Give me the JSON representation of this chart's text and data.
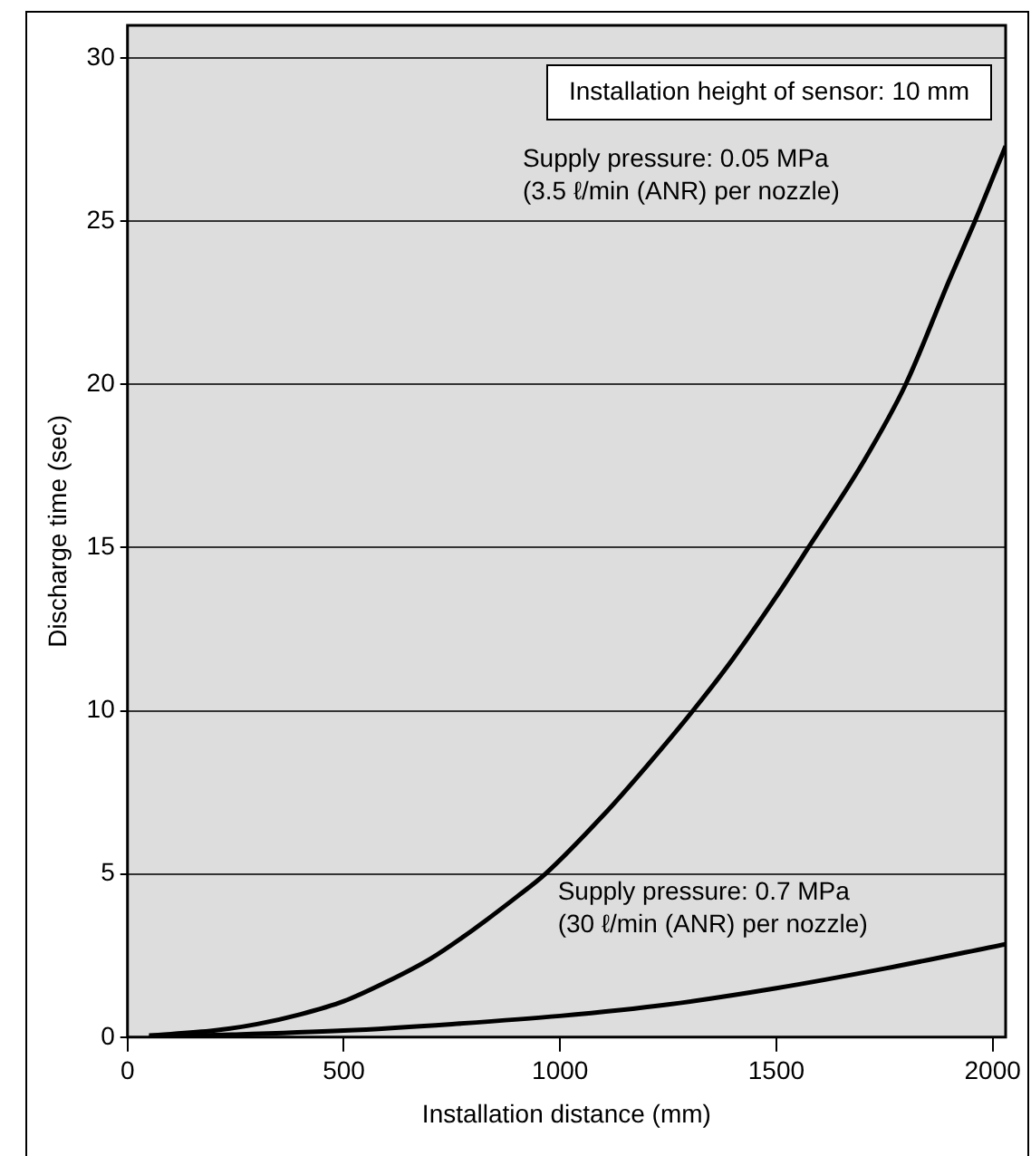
{
  "chart_data": {
    "type": "line",
    "xlabel": "Installation distance (mm)",
    "ylabel": "Discharge time (sec)",
    "series": [
      {
        "color": "#000000",
        "x": [
          50,
          200,
          300,
          400,
          500,
          600,
          700,
          800,
          900,
          966,
          1100,
          1200,
          1307,
          1400,
          1500,
          1574,
          1700,
          1799,
          1900,
          1959,
          2030
        ],
        "values": [
          0.05,
          0.2,
          0.4,
          0.7,
          1.1,
          1.7,
          2.4,
          3.3,
          4.3,
          5,
          6.8,
          8.3,
          10,
          11.6,
          13.5,
          15,
          17.6,
          20,
          23.2,
          25,
          27.3
        ]
      },
      {
        "color": "#000000",
        "x": [
          50,
          250,
          500,
          750,
          1000,
          1250,
          1500,
          1750,
          2030
        ],
        "values": [
          0.02,
          0.08,
          0.2,
          0.4,
          0.65,
          1.0,
          1.5,
          2.1,
          2.85
        ]
      }
    ],
    "annotations": [
      "Installation height of sensor: 10 mm",
      "Supply pressure: 0.05 MPa\n(3.5 ℓ/min (ANR) per nozzle)",
      "Supply pressure: 0.7 MPa\n(30 ℓ/min (ANR) per nozzle)"
    ],
    "xlim": [
      0,
      2030
    ],
    "xticks": [
      0,
      500,
      1000,
      1500,
      2000
    ],
    "ylim": [
      0,
      31
    ],
    "yticks": [
      0,
      5,
      10,
      15,
      20,
      25,
      30
    ],
    "grid": "y",
    "legend": false,
    "marker": "none",
    "line_style": "solid"
  }
}
